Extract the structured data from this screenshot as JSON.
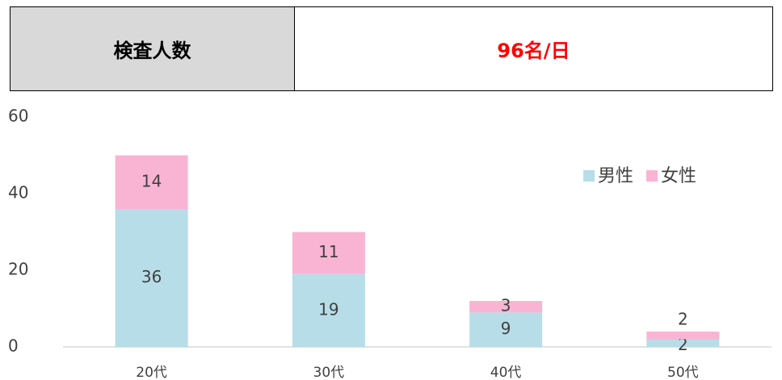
{
  "header": {
    "label": "検査人数",
    "value": "96名/日"
  },
  "chart_data": {
    "type": "stacked-bar",
    "categories": [
      "20代",
      "30代",
      "40代",
      "50代"
    ],
    "series": [
      {
        "name": "男性",
        "color": "#b7dde8",
        "values": [
          36,
          19,
          9,
          2
        ]
      },
      {
        "name": "女性",
        "color": "#f9b4d4",
        "values": [
          14,
          11,
          3,
          2
        ]
      }
    ],
    "ylim": [
      0,
      60
    ],
    "yticks": [
      0,
      20,
      40,
      60
    ],
    "grid": false,
    "legend": "upper right"
  }
}
